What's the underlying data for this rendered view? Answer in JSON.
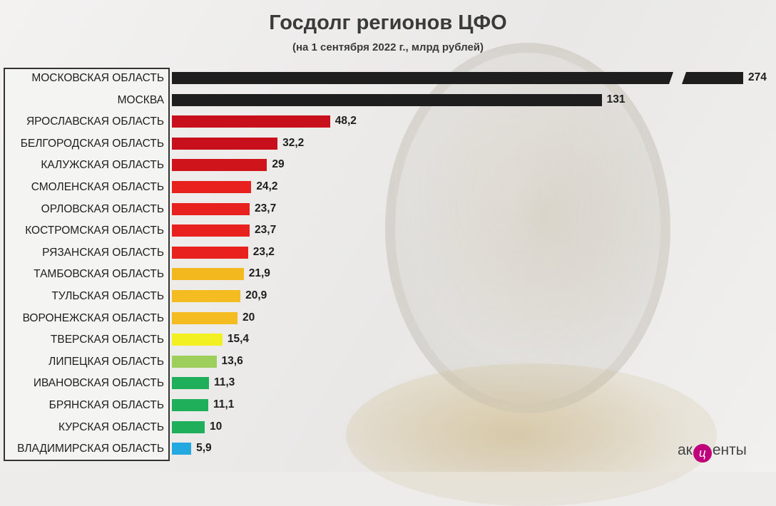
{
  "title": "Госдолг регионов ЦФО",
  "subtitle": "(на 1 сентября 2022 г., млрд рублей)",
  "logo": {
    "prefix": "ак",
    "accent_letter": "ц",
    "suffix": "енты",
    "accent_color": "#c0007a"
  },
  "chart_data": {
    "type": "bar",
    "orientation": "horizontal",
    "title": "Госдолг регионов ЦФО",
    "subtitle": "(на 1 сентября 2022 г., млрд рублей)",
    "categories": [
      "МОСКОВСКАЯ ОБЛАСТЬ",
      "МОСКВА",
      "ЯРОСЛАВСКАЯ ОБЛАСТЬ",
      "БЕЛГОРОДСКАЯ ОБЛАСТЬ",
      "КАЛУЖСКАЯ ОБЛАСТЬ",
      "СМОЛЕНСКАЯ ОБЛАСТЬ",
      "ОРЛОВСКАЯ ОБЛАСТЬ",
      "КОСТРОМСКАЯ ОБЛАСТЬ",
      "РЯЗАНСКАЯ ОБЛАСТЬ",
      "ТАМБОВСКАЯ ОБЛАСТЬ",
      "ТУЛЬСКАЯ ОБЛАСТЬ",
      "ВОРОНЕЖСКАЯ ОБЛАСТЬ",
      "ТВЕРСКАЯ ОБЛАСТЬ",
      "ЛИПЕЦКАЯ ОБЛАСТЬ",
      "ИВАНОВСКАЯ ОБЛАСТЬ",
      "БРЯНСКАЯ ОБЛАСТЬ",
      "КУРСКАЯ ОБЛАСТЬ",
      "ВЛАДИМИРСКАЯ ОБЛАСТЬ"
    ],
    "values": [
      274,
      131,
      48.2,
      32.2,
      29,
      24.2,
      23.7,
      23.7,
      23.2,
      21.9,
      20.9,
      20,
      15.4,
      13.6,
      11.3,
      11.1,
      10,
      5.9
    ],
    "value_labels": [
      "274",
      "131",
      "48,2",
      "32,2",
      "29",
      "24,2",
      "23,7",
      "23,7",
      "23,2",
      "21,9",
      "20,9",
      "20",
      "15,4",
      "13,6",
      "11,3",
      "11,1",
      "10",
      "5,9"
    ],
    "colors": [
      "#1e1e1e",
      "#1e1e1e",
      "#c8101c",
      "#c8101c",
      "#d0141c",
      "#e8201e",
      "#e8201e",
      "#e8201e",
      "#e8201e",
      "#f2b81e",
      "#f4bc20",
      "#f4bc20",
      "#f2f020",
      "#9ccf5c",
      "#1fae5a",
      "#1fae5a",
      "#1fae5a",
      "#23a8e0"
    ],
    "axis_break_on_first_bar": true,
    "grid": false,
    "legend": "none"
  }
}
